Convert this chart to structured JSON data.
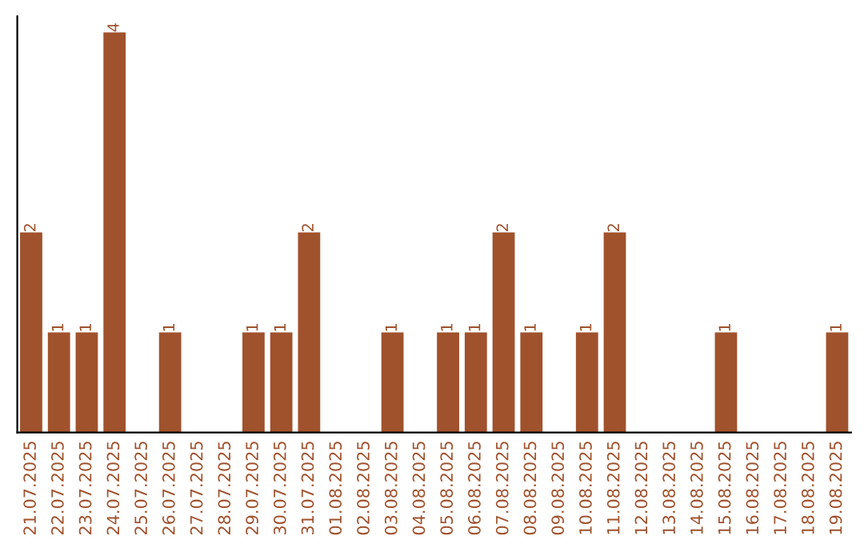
{
  "chart_data": {
    "type": "bar",
    "categories": [
      "21.07.2025",
      "22.07.2025",
      "23.07.2025",
      "24.07.2025",
      "25.07.2025",
      "26.07.2025",
      "27.07.2025",
      "28.07.2025",
      "29.07.2025",
      "30.07.2025",
      "31.07.2025",
      "01.08.2025",
      "02.08.2025",
      "03.08.2025",
      "04.08.2025",
      "05.08.2025",
      "06.08.2025",
      "07.08.2025",
      "08.08.2025",
      "09.08.2025",
      "10.08.2025",
      "11.08.2025",
      "12.08.2025",
      "13.08.2025",
      "14.08.2025",
      "15.08.2025",
      "16.08.2025",
      "17.08.2025",
      "18.08.2025",
      "19.08.2025"
    ],
    "values": [
      2,
      1,
      1,
      4,
      0,
      1,
      0,
      0,
      1,
      1,
      2,
      0,
      0,
      1,
      0,
      1,
      1,
      2,
      1,
      0,
      1,
      2,
      0,
      0,
      0,
      1,
      0,
      0,
      0,
      1
    ],
    "value_labels": [
      "2",
      "1",
      "1",
      "4",
      null,
      "1",
      null,
      null,
      "1",
      "1",
      "2",
      null,
      null,
      "1",
      null,
      "1",
      "1",
      "2",
      "1",
      null,
      "1",
      "2",
      null,
      null,
      null,
      "1",
      null,
      null,
      null,
      "1"
    ],
    "color": "#a0522d",
    "tick_labels": "x",
    "grid": false
  }
}
